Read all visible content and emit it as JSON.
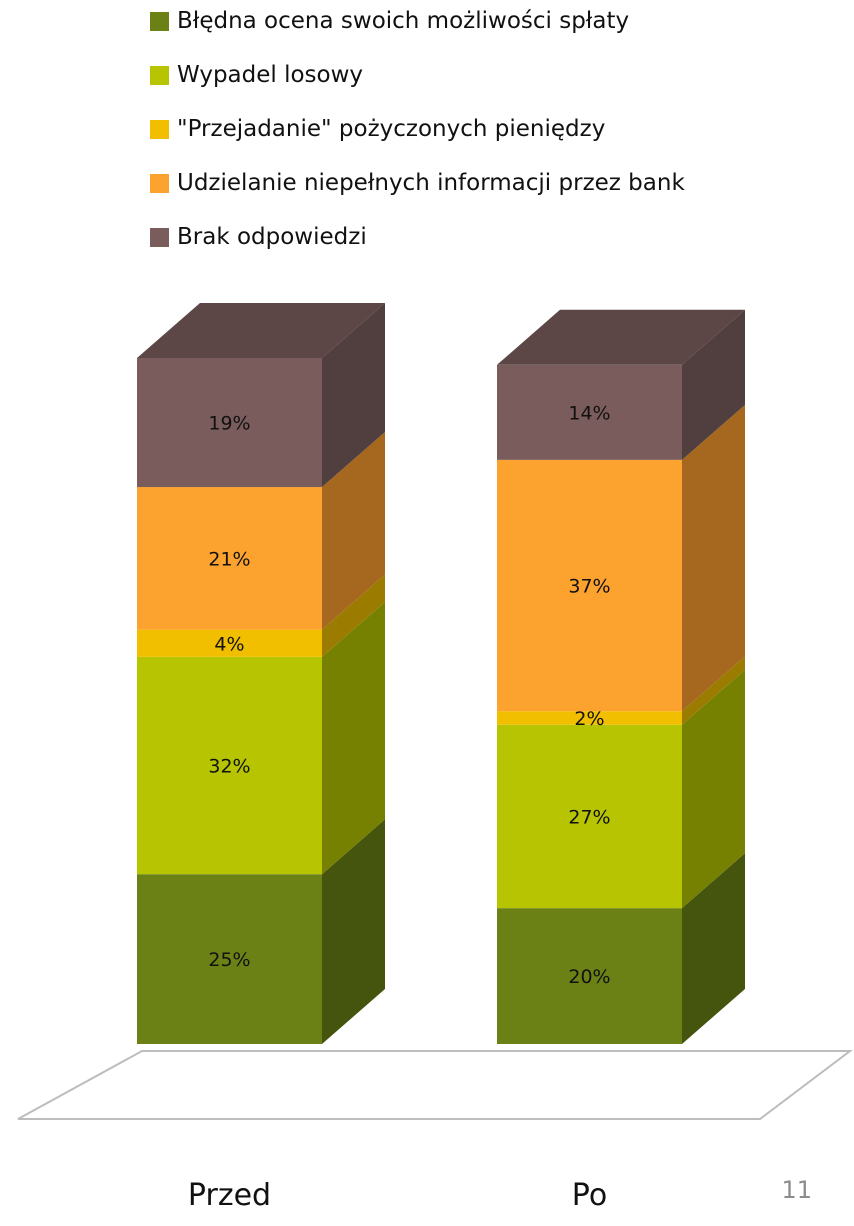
{
  "chart_data": {
    "type": "bar",
    "stacked": true,
    "three_d": true,
    "percent": true,
    "categories": [
      "Przed",
      "Po"
    ],
    "series": [
      {
        "name": "Błędna ocena swoich możliwości spłaty",
        "values": [
          25,
          20
        ],
        "color": "#6b8116",
        "side_color": "#46550e",
        "top_color": "#8aa42a"
      },
      {
        "name": "Wypadel losowy",
        "values": [
          32,
          27
        ],
        "color": "#b6c402",
        "side_color": "#768101",
        "top_color": "#c9d62c"
      },
      {
        "name": "\"Przejadanie\" pożyczonych pieniędzy",
        "values": [
          4,
          2
        ],
        "color": "#f1bf00",
        "side_color": "#9c7c00",
        "top_color": "#f5cf33"
      },
      {
        "name": "Udzielanie niepełnych informacji przez bank",
        "values": [
          21,
          37
        ],
        "color": "#fca22f",
        "side_color": "#a5681e",
        "top_color": "#fdb657"
      },
      {
        "name": "Brak odpowiedzi",
        "values": [
          19,
          14
        ],
        "color": "#7a5c5c",
        "side_color": "#513e3e",
        "top_color": "#5d4646"
      }
    ],
    "data_labels": [
      [
        "25%",
        "20%"
      ],
      [
        "32%",
        "27%"
      ],
      [
        "4%",
        "2%"
      ],
      [
        "21%",
        "37%"
      ],
      [
        "19%",
        "14%"
      ]
    ],
    "legend_position": "top",
    "ylim": [
      0,
      101
    ],
    "grid": false
  },
  "page_number": "11"
}
